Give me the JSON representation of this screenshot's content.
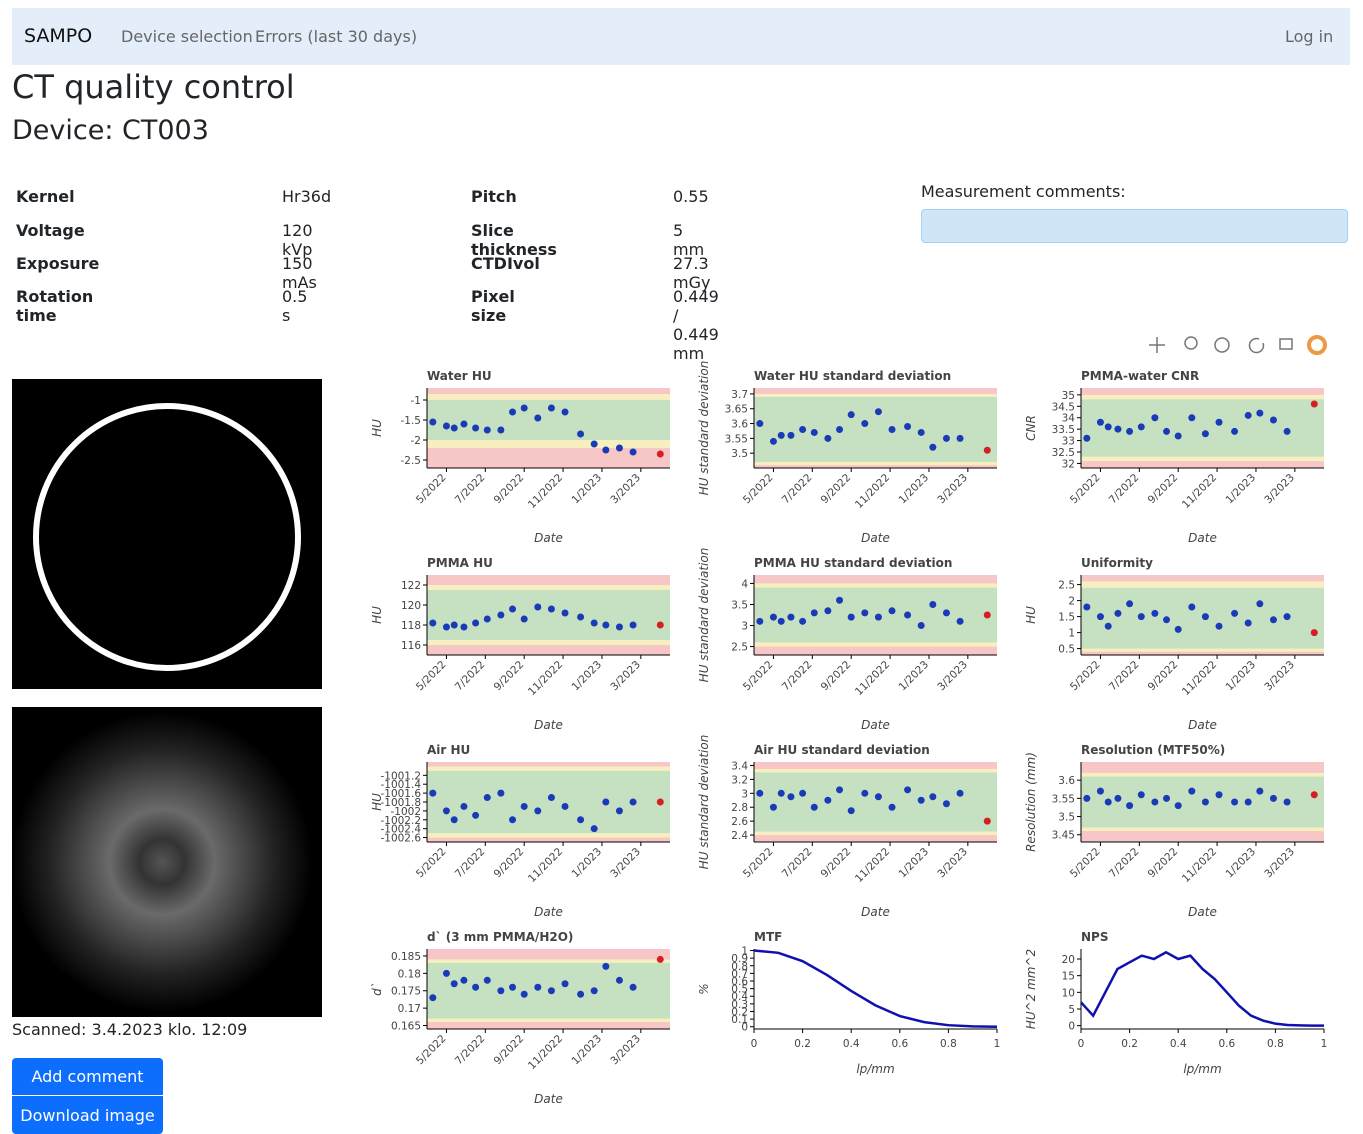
{
  "navbar": {
    "brand": "SAMPO",
    "links": [
      "Device selection",
      "Errors (last 30 days)"
    ],
    "login": "Log in"
  },
  "title": "CT quality control",
  "device": "Device: CT003",
  "parameters": [
    [
      "Kernel",
      "Hr36d",
      "Pitch",
      "0.55"
    ],
    [
      "Voltage",
      "120 kVp",
      "Slice thickness",
      "5 mm"
    ],
    [
      "Exposure",
      "150 mAs",
      "CTDIvol",
      "27.3 mGy"
    ],
    [
      "Rotation time",
      "0.5 s",
      "Pixel size",
      "0.449 / 0.449 mm"
    ]
  ],
  "comments_label": "Measurement comments:",
  "scanned": "Scanned: 3.4.2023 klo. 12:09",
  "buttons": [
    "Add comment",
    "Download image"
  ],
  "chart_data": [
    {
      "type": "scatter",
      "title": "Water HU",
      "ylabel": "HU",
      "xlabel": "Date",
      "x": [
        4.3,
        5.0,
        5.4,
        5.9,
        6.5,
        7.1,
        7.8,
        8.4,
        9.0,
        9.7,
        10.4,
        11.1,
        11.9,
        12.6,
        13.2,
        13.9,
        14.6,
        16.0
      ],
      "values": [
        -1.55,
        -1.65,
        -1.7,
        -1.6,
        -1.7,
        -1.75,
        -1.75,
        -1.3,
        -1.2,
        -1.45,
        -1.2,
        -1.3,
        -1.85,
        -2.1,
        -2.25,
        -2.2,
        -2.3,
        -2.35
      ],
      "xlim": [
        4,
        16.5
      ],
      "xticks": [
        {
          "value": 5,
          "label": "5/2022"
        },
        {
          "value": 7,
          "label": "7/2022"
        },
        {
          "value": 9,
          "label": "9/2022"
        },
        {
          "value": 11,
          "label": "11/2022"
        },
        {
          "value": 13,
          "label": "1/2023"
        },
        {
          "value": 15,
          "label": "3/2023"
        }
      ],
      "ylim": [
        -2.7,
        -0.7
      ],
      "yticks": [
        -1,
        -1.5,
        -2,
        -2.5
      ],
      "zones": {
        "yellow": [
          -2.2,
          -0.85
        ],
        "green": [
          -2.0,
          -1.0
        ]
      },
      "color": "#1a3bb8",
      "last_color": "#d42020"
    },
    {
      "type": "scatter",
      "title": "Water HU standard deviation",
      "ylabel": "HU standard deviation",
      "xlabel": "Date",
      "x": [
        4.3,
        5.0,
        5.4,
        5.9,
        6.5,
        7.1,
        7.8,
        8.4,
        9.0,
        9.7,
        10.4,
        11.1,
        11.9,
        12.6,
        13.2,
        13.9,
        14.6,
        16.0
      ],
      "values": [
        3.6,
        3.54,
        3.56,
        3.56,
        3.58,
        3.57,
        3.55,
        3.58,
        3.63,
        3.6,
        3.64,
        3.58,
        3.59,
        3.57,
        3.52,
        3.55,
        3.55,
        3.51
      ],
      "xlim": [
        4,
        16.5
      ],
      "xticks": [
        {
          "value": 5,
          "label": "5/2022"
        },
        {
          "value": 7,
          "label": "7/2022"
        },
        {
          "value": 9,
          "label": "9/2022"
        },
        {
          "value": 11,
          "label": "11/2022"
        },
        {
          "value": 13,
          "label": "1/2023"
        },
        {
          "value": 15,
          "label": "3/2023"
        }
      ],
      "ylim": [
        3.45,
        3.72
      ],
      "yticks": [
        3.5,
        3.55,
        3.6,
        3.65,
        3.7
      ],
      "zones": {
        "yellow": [
          3.46,
          3.7
        ],
        "green": [
          3.47,
          3.69
        ]
      },
      "color": "#1a3bb8",
      "last_color": "#d42020"
    },
    {
      "type": "scatter",
      "title": "PMMA-water CNR",
      "ylabel": "CNR",
      "xlabel": "Date",
      "x": [
        4.3,
        5.0,
        5.4,
        5.9,
        6.5,
        7.1,
        7.8,
        8.4,
        9.0,
        9.7,
        10.4,
        11.1,
        11.9,
        12.6,
        13.2,
        13.9,
        14.6,
        16.0
      ],
      "values": [
        33.1,
        33.8,
        33.6,
        33.5,
        33.4,
        33.6,
        34.0,
        33.4,
        33.2,
        34.0,
        33.3,
        33.8,
        33.4,
        34.1,
        34.2,
        33.9,
        33.4,
        34.6
      ],
      "xlim": [
        4,
        16.5
      ],
      "xticks": [
        {
          "value": 5,
          "label": "5/2022"
        },
        {
          "value": 7,
          "label": "7/2022"
        },
        {
          "value": 9,
          "label": "9/2022"
        },
        {
          "value": 11,
          "label": "11/2022"
        },
        {
          "value": 13,
          "label": "1/2023"
        },
        {
          "value": 15,
          "label": "3/2023"
        }
      ],
      "ylim": [
        31.8,
        35.3
      ],
      "yticks": [
        32,
        32.5,
        33,
        33.5,
        34,
        34.5,
        35
      ],
      "zones": {
        "yellow": [
          32.1,
          35.0
        ],
        "green": [
          32.3,
          34.8
        ]
      },
      "color": "#1a3bb8",
      "last_color": "#d42020"
    },
    {
      "type": "scatter",
      "title": "PMMA HU",
      "ylabel": "HU",
      "xlabel": "Date",
      "x": [
        4.3,
        5.0,
        5.4,
        5.9,
        6.5,
        7.1,
        7.8,
        8.4,
        9.0,
        9.7,
        10.4,
        11.1,
        11.9,
        12.6,
        13.2,
        13.9,
        14.6,
        16.0
      ],
      "values": [
        118.2,
        117.8,
        118.0,
        117.8,
        118.2,
        118.6,
        119.0,
        119.6,
        118.6,
        119.8,
        119.6,
        119.2,
        118.8,
        118.2,
        118.0,
        117.8,
        118.0,
        118.0
      ],
      "xlim": [
        4,
        16.5
      ],
      "xticks": [
        {
          "value": 5,
          "label": "5/2022"
        },
        {
          "value": 7,
          "label": "7/2022"
        },
        {
          "value": 9,
          "label": "9/2022"
        },
        {
          "value": 11,
          "label": "11/2022"
        },
        {
          "value": 13,
          "label": "1/2023"
        },
        {
          "value": 15,
          "label": "3/2023"
        }
      ],
      "ylim": [
        115,
        123
      ],
      "yticks": [
        116,
        118,
        120,
        122
      ],
      "zones": {
        "yellow": [
          116,
          122
        ],
        "green": [
          116.5,
          121.5
        ]
      },
      "color": "#1a3bb8",
      "last_color": "#d42020"
    },
    {
      "type": "scatter",
      "title": "PMMA HU standard deviation",
      "ylabel": "HU standard deviation",
      "xlabel": "Date",
      "x": [
        4.3,
        5.0,
        5.4,
        5.9,
        6.5,
        7.1,
        7.8,
        8.4,
        9.0,
        9.7,
        10.4,
        11.1,
        11.9,
        12.6,
        13.2,
        13.9,
        14.6,
        16.0
      ],
      "values": [
        3.1,
        3.2,
        3.1,
        3.2,
        3.1,
        3.3,
        3.35,
        3.6,
        3.2,
        3.3,
        3.2,
        3.35,
        3.25,
        3.0,
        3.5,
        3.3,
        3.1,
        3.25
      ],
      "xlim": [
        4,
        16.5
      ],
      "xticks": [
        {
          "value": 5,
          "label": "5/2022"
        },
        {
          "value": 7,
          "label": "7/2022"
        },
        {
          "value": 9,
          "label": "9/2022"
        },
        {
          "value": 11,
          "label": "11/2022"
        },
        {
          "value": 13,
          "label": "1/2023"
        },
        {
          "value": 15,
          "label": "3/2023"
        }
      ],
      "ylim": [
        2.3,
        4.2
      ],
      "yticks": [
        2.5,
        3,
        3.5,
        4
      ],
      "zones": {
        "yellow": [
          2.5,
          4.0
        ],
        "green": [
          2.6,
          3.9
        ]
      },
      "color": "#1a3bb8",
      "last_color": "#d42020"
    },
    {
      "type": "scatter",
      "title": "Uniformity",
      "ylabel": "HU",
      "xlabel": "Date",
      "x": [
        4.3,
        5.0,
        5.4,
        5.9,
        6.5,
        7.1,
        7.8,
        8.4,
        9.0,
        9.7,
        10.4,
        11.1,
        11.9,
        12.6,
        13.2,
        13.9,
        14.6,
        16.0
      ],
      "values": [
        1.8,
        1.5,
        1.2,
        1.6,
        1.9,
        1.5,
        1.6,
        1.4,
        1.1,
        1.8,
        1.5,
        1.2,
        1.6,
        1.3,
        1.9,
        1.4,
        1.5,
        1.0
      ],
      "xlim": [
        4,
        16.5
      ],
      "xticks": [
        {
          "value": 5,
          "label": "5/2022"
        },
        {
          "value": 7,
          "label": "7/2022"
        },
        {
          "value": 9,
          "label": "9/2022"
        },
        {
          "value": 11,
          "label": "11/2022"
        },
        {
          "value": 13,
          "label": "1/2023"
        },
        {
          "value": 15,
          "label": "3/2023"
        }
      ],
      "ylim": [
        0.3,
        2.8
      ],
      "yticks": [
        0.5,
        1,
        1.5,
        2,
        2.5
      ],
      "zones": {
        "yellow": [
          0.4,
          2.6
        ],
        "green": [
          0.5,
          2.4
        ]
      },
      "color": "#1a3bb8",
      "last_color": "#d42020"
    },
    {
      "type": "scatter",
      "title": "Air HU",
      "ylabel": "HU",
      "xlabel": "Date",
      "x": [
        4.3,
        5.0,
        5.4,
        5.9,
        6.5,
        7.1,
        7.8,
        8.4,
        9.0,
        9.7,
        10.4,
        11.1,
        11.9,
        12.6,
        13.2,
        13.9,
        14.6,
        16.0
      ],
      "values": [
        -1001.6,
        -1002.0,
        -1002.2,
        -1001.9,
        -1002.1,
        -1001.7,
        -1001.6,
        -1002.2,
        -1001.9,
        -1002.0,
        -1001.7,
        -1001.9,
        -1002.2,
        -1002.4,
        -1001.8,
        -1002.0,
        -1001.8,
        -1001.8
      ],
      "xlim": [
        4,
        16.5
      ],
      "xticks": [
        {
          "value": 5,
          "label": "5/2022"
        },
        {
          "value": 7,
          "label": "7/2022"
        },
        {
          "value": 9,
          "label": "9/2022"
        },
        {
          "value": 11,
          "label": "11/2022"
        },
        {
          "value": 13,
          "label": "1/2023"
        },
        {
          "value": 15,
          "label": "3/2023"
        }
      ],
      "ylim": [
        -1002.7,
        -1000.9
      ],
      "yticks": [
        -1001.2,
        -1001.4,
        -1001.6,
        -1001.8,
        -1002,
        -1002.2,
        -1002.4,
        -1002.6
      ],
      "zones": {
        "yellow": [
          -1002.6,
          -1001.0
        ],
        "green": [
          -1002.5,
          -1001.1
        ]
      },
      "color": "#1a3bb8",
      "last_color": "#d42020"
    },
    {
      "type": "scatter",
      "title": "Air HU standard deviation",
      "ylabel": "HU standard deviation",
      "xlabel": "Date",
      "x": [
        4.3,
        5.0,
        5.4,
        5.9,
        6.5,
        7.1,
        7.8,
        8.4,
        9.0,
        9.7,
        10.4,
        11.1,
        11.9,
        12.6,
        13.2,
        13.9,
        14.6,
        16.0
      ],
      "values": [
        3.0,
        2.8,
        3.0,
        2.95,
        3.0,
        2.8,
        2.9,
        3.05,
        2.75,
        3.0,
        2.95,
        2.8,
        3.05,
        2.9,
        2.95,
        2.85,
        3.0,
        2.6
      ],
      "xlim": [
        4,
        16.5
      ],
      "xticks": [
        {
          "value": 5,
          "label": "5/2022"
        },
        {
          "value": 7,
          "label": "7/2022"
        },
        {
          "value": 9,
          "label": "9/2022"
        },
        {
          "value": 11,
          "label": "11/2022"
        },
        {
          "value": 13,
          "label": "1/2023"
        },
        {
          "value": 15,
          "label": "3/2023"
        }
      ],
      "ylim": [
        2.3,
        3.45
      ],
      "yticks": [
        2.4,
        2.6,
        2.8,
        3,
        3.2,
        3.4
      ],
      "zones": {
        "yellow": [
          2.4,
          3.35
        ],
        "green": [
          2.45,
          3.3
        ]
      },
      "color": "#1a3bb8",
      "last_color": "#d42020"
    },
    {
      "type": "scatter",
      "title": "Resolution (MTF50%)",
      "ylabel": "Resolution (mm)",
      "xlabel": "Date",
      "x": [
        4.3,
        5.0,
        5.4,
        5.9,
        6.5,
        7.1,
        7.8,
        8.4,
        9.0,
        9.7,
        10.4,
        11.1,
        11.9,
        12.6,
        13.2,
        13.9,
        14.6,
        16.0
      ],
      "values": [
        3.55,
        3.57,
        3.54,
        3.55,
        3.53,
        3.56,
        3.54,
        3.55,
        3.53,
        3.57,
        3.54,
        3.56,
        3.54,
        3.54,
        3.57,
        3.55,
        3.54,
        3.56
      ],
      "xlim": [
        4,
        16.5
      ],
      "xticks": [
        {
          "value": 5,
          "label": "5/2022"
        },
        {
          "value": 7,
          "label": "7/2022"
        },
        {
          "value": 9,
          "label": "9/2022"
        },
        {
          "value": 11,
          "label": "11/2022"
        },
        {
          "value": 13,
          "label": "1/2023"
        },
        {
          "value": 15,
          "label": "3/2023"
        }
      ],
      "ylim": [
        3.43,
        3.65
      ],
      "yticks": [
        3.45,
        3.5,
        3.55,
        3.6
      ],
      "zones": {
        "yellow": [
          3.46,
          3.62
        ],
        "green": [
          3.47,
          3.61
        ]
      },
      "color": "#1a3bb8",
      "last_color": "#d42020"
    },
    {
      "type": "scatter",
      "title": "d` (3 mm PMMA/H2O)",
      "ylabel": "d`",
      "xlabel": "Date",
      "x": [
        4.3,
        5.0,
        5.4,
        5.9,
        6.5,
        7.1,
        7.8,
        8.4,
        9.0,
        9.7,
        10.4,
        11.1,
        11.9,
        12.6,
        13.2,
        13.9,
        14.6,
        16.0
      ],
      "values": [
        0.173,
        0.18,
        0.177,
        0.178,
        0.176,
        0.178,
        0.175,
        0.176,
        0.174,
        0.176,
        0.175,
        0.177,
        0.174,
        0.175,
        0.182,
        0.178,
        0.176,
        0.184
      ],
      "xlim": [
        4,
        16.5
      ],
      "xticks": [
        {
          "value": 5,
          "label": "5/2022"
        },
        {
          "value": 7,
          "label": "7/2022"
        },
        {
          "value": 9,
          "label": "9/2022"
        },
        {
          "value": 11,
          "label": "11/2022"
        },
        {
          "value": 13,
          "label": "1/2023"
        },
        {
          "value": 15,
          "label": "3/2023"
        }
      ],
      "ylim": [
        0.164,
        0.187
      ],
      "yticks": [
        0.165,
        0.17,
        0.175,
        0.18,
        0.185
      ],
      "zones": {
        "yellow": [
          0.166,
          0.184
        ],
        "green": [
          0.167,
          0.183
        ]
      },
      "color": "#1a3bb8",
      "last_color": "#d42020"
    },
    {
      "type": "line",
      "title": "MTF",
      "ylabel": "%",
      "xlabel": "lp/mm",
      "x": [
        0,
        0.1,
        0.2,
        0.3,
        0.4,
        0.5,
        0.6,
        0.7,
        0.8,
        0.9,
        1
      ],
      "values": [
        1,
        0.97,
        0.86,
        0.68,
        0.47,
        0.28,
        0.14,
        0.06,
        0.02,
        0.005,
        0
      ],
      "xlim": [
        0,
        1
      ],
      "xticks": [
        0,
        0.2,
        0.4,
        0.6,
        0.8,
        1
      ],
      "ylim": [
        -0.03,
        1.02
      ],
      "yticks": [
        0,
        0.1,
        0.2,
        0.3,
        0.4,
        0.5,
        0.6,
        0.7,
        0.8,
        0.9,
        1
      ],
      "color": "#1010b0"
    },
    {
      "type": "line",
      "title": "NPS",
      "ylabel": "HU^2 mm^2",
      "xlabel": "lp/mm",
      "x": [
        0,
        0.05,
        0.1,
        0.15,
        0.2,
        0.25,
        0.3,
        0.35,
        0.4,
        0.45,
        0.5,
        0.55,
        0.6,
        0.65,
        0.7,
        0.75,
        0.8,
        0.85,
        0.9,
        0.95,
        1
      ],
      "values": [
        7,
        3,
        10,
        17,
        19,
        21,
        20,
        22,
        20,
        21,
        17,
        14,
        10,
        6,
        3,
        1.5,
        0.6,
        0.2,
        0.1,
        0,
        0
      ],
      "xlim": [
        0,
        1
      ],
      "xticks": [
        0,
        0.2,
        0.4,
        0.6,
        0.8,
        1
      ],
      "ylim": [
        -1,
        23
      ],
      "yticks": [
        0,
        5,
        10,
        15,
        20
      ],
      "color": "#1010b0"
    }
  ]
}
